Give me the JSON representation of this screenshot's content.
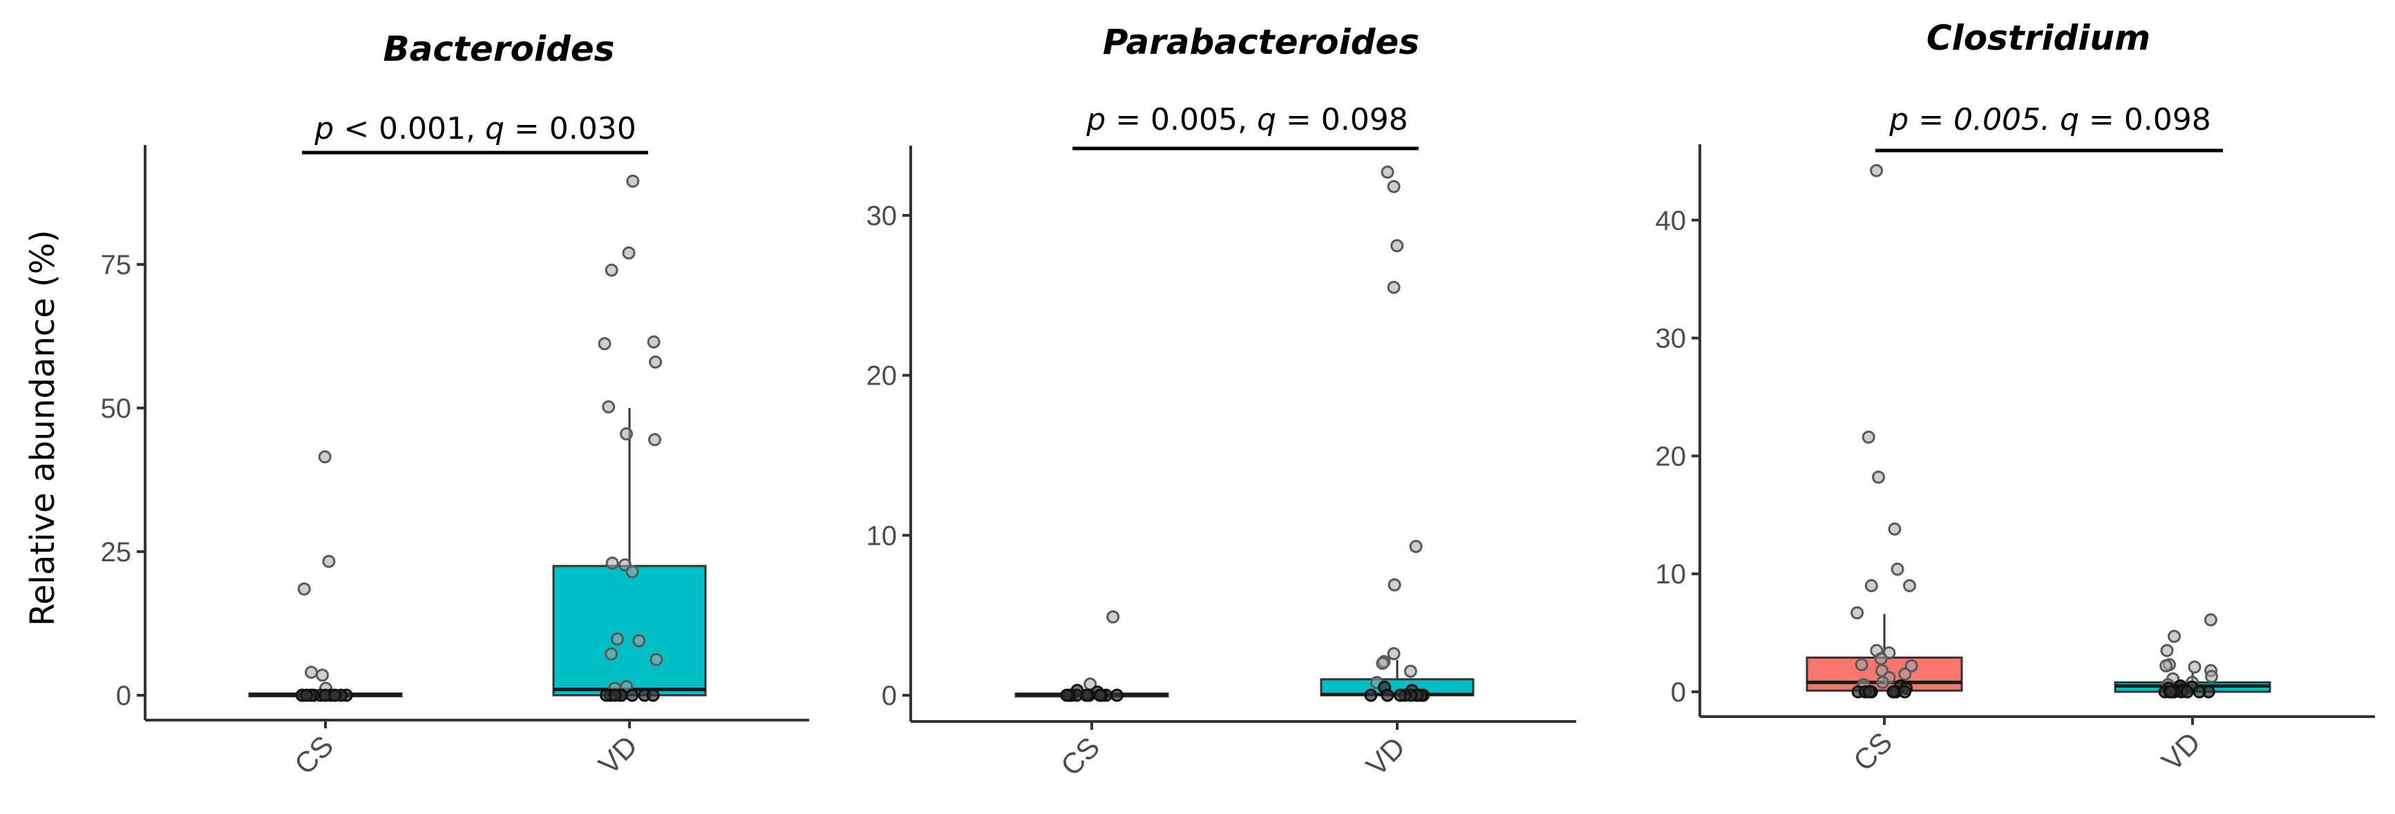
{
  "figure": {
    "ylabel": "Relative abundance (%)"
  },
  "colors": {
    "CS": "#F8766D",
    "VD": "#00BFC4",
    "point_fill": "#a6a6a6",
    "point_stroke": "#595959",
    "axis": "#333333",
    "tick_label": "#4d4d4d"
  },
  "chart_data": [
    {
      "type": "box",
      "title": "Bacteroides",
      "annotation": {
        "p_prefix": "p",
        "p_text": " < 0.001, ",
        "q_prefix": "q",
        "q_text": " = 0.030"
      },
      "xlabel": "",
      "ylabel": "Relative abundance (%)",
      "categories": [
        "CS",
        "VD"
      ],
      "yticks": [
        0,
        25,
        50,
        75
      ],
      "ylim": [
        -5,
        95
      ],
      "boxes": [
        {
          "group": "CS",
          "q1": 0,
          "median": 0.1,
          "q3": 0.3,
          "whisker_low": 0,
          "whisker_high": 0.5
        },
        {
          "group": "VD",
          "q1": 0,
          "median": 1.0,
          "q3": 22.5,
          "whisker_low": 0,
          "whisker_high": 50
        }
      ],
      "points": {
        "CS": [
          41.5,
          23.3,
          18.5,
          4.0,
          3.5,
          1.2,
          0,
          0,
          0,
          0,
          0,
          0,
          0,
          0,
          0,
          0,
          0,
          0
        ],
        "VD": [
          89.5,
          77,
          74,
          61.2,
          61.5,
          58,
          50.2,
          45.5,
          44.5,
          23,
          22.7,
          21.5,
          9.5,
          9.8,
          7.2,
          6.2,
          1.5,
          1.2,
          0,
          0,
          0,
          0,
          0,
          0,
          0,
          0,
          0
        ]
      }
    },
    {
      "type": "box",
      "title": "Parabacteroides",
      "annotation": {
        "p_prefix": "p",
        "p_text": " = 0.005, ",
        "q_prefix": "q",
        "q_text": " = 0.098"
      },
      "xlabel": "",
      "ylabel": "",
      "categories": [
        "CS",
        "VD"
      ],
      "yticks": [
        0,
        10,
        20,
        30
      ],
      "ylim": [
        -1.6,
        34
      ],
      "boxes": [
        {
          "group": "CS",
          "q1": 0,
          "median": 0.05,
          "q3": 0.1,
          "whisker_low": 0,
          "whisker_high": 0.2
        },
        {
          "group": "VD",
          "q1": 0,
          "median": 0.05,
          "q3": 1.0,
          "whisker_low": 0,
          "whisker_high": 2.2
        }
      ],
      "points": {
        "CS": [
          4.9,
          0.7,
          0.3,
          0.2,
          0,
          0,
          0,
          0,
          0,
          0,
          0,
          0,
          0,
          0,
          0,
          0
        ],
        "VD": [
          32.7,
          31.8,
          28.1,
          25.5,
          9.3,
          6.9,
          2.6,
          2.1,
          2.0,
          1.5,
          0.8,
          0.5,
          0.3,
          0,
          0,
          0,
          0,
          0,
          0,
          0,
          0,
          0
        ]
      }
    },
    {
      "type": "box",
      "title": "Clostridium",
      "annotation": {
        "p_prefix": "p",
        "p_text": " = 0.005. ",
        "q_prefix": "q",
        "q_text": " = 0.098"
      },
      "xlabel": "",
      "ylabel": "",
      "categories": [
        "CS",
        "VD"
      ],
      "yticks": [
        0,
        10,
        20,
        30,
        40
      ],
      "ylim": [
        -2,
        46
      ],
      "boxes": [
        {
          "group": "CS",
          "q1": 0.1,
          "median": 0.8,
          "q3": 2.9,
          "whisker_low": 0,
          "whisker_high": 6.6
        },
        {
          "group": "VD",
          "q1": 0,
          "median": 0.5,
          "q3": 0.8,
          "whisker_low": 0,
          "whisker_high": 1.6
        }
      ],
      "points": {
        "CS": [
          44.2,
          21.6,
          18.2,
          13.8,
          10.4,
          9.0,
          9.0,
          6.7,
          3.5,
          3.3,
          2.8,
          2.3,
          2.2,
          1.8,
          1.5,
          1.2,
          0.8,
          0.6,
          0.5,
          0.3,
          0,
          0,
          0,
          0,
          0,
          0,
          0,
          0
        ],
        "VD": [
          6.1,
          4.7,
          3.5,
          2.3,
          2.2,
          2.1,
          1.8,
          1.3,
          1.1,
          0.8,
          0.6,
          0.5,
          0.4,
          0.3,
          0.2,
          0.1,
          0,
          0,
          0,
          0,
          0,
          0,
          0,
          0,
          0
        ]
      }
    }
  ]
}
